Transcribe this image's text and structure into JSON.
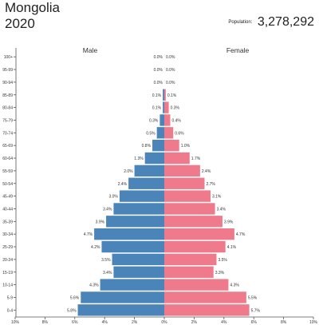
{
  "header": {
    "country": "Mongolia",
    "year": "2020",
    "population_label": "Population:",
    "population_value": "3,278,292"
  },
  "chart_data": {
    "type": "bar",
    "orientation": "horizontal",
    "xlabel": "",
    "ylabel": "",
    "x_ticks": [
      "10%",
      "8%",
      "6%",
      "4%",
      "2%",
      "0%",
      "2%",
      "4%",
      "6%",
      "8%",
      "10%"
    ],
    "xlim": [
      -10,
      10
    ],
    "categories": [
      "100+",
      "95-99",
      "90-94",
      "85-89",
      "80-84",
      "75-79",
      "70-74",
      "65-69",
      "60-64",
      "55-59",
      "50-54",
      "45-49",
      "40-44",
      "35-39",
      "30-34",
      "25-29",
      "20-24",
      "15-19",
      "10-14",
      "5-9",
      "0-4"
    ],
    "series": [
      {
        "name": "Male",
        "color": "#4a84b9",
        "values": [
          0.0,
          0.0,
          0.0,
          0.1,
          0.1,
          0.3,
          0.5,
          0.8,
          1.3,
          2.0,
          2.4,
          3.0,
          3.4,
          3.9,
          4.7,
          4.2,
          3.5,
          3.4,
          4.3,
          5.6,
          5.8
        ],
        "labels": [
          "0.0%",
          "0.0%",
          "0.0%",
          "0.1%",
          "0.1%",
          "0.3%",
          "0.5%",
          "0.8%",
          "1.3%",
          "2.0%",
          "2.4%",
          "3.0%",
          "3.4%",
          "3.9%",
          "4.7%",
          "4.2%",
          "3.5%",
          "3.4%",
          "4.3%",
          "5.6%",
          "5.8%"
        ]
      },
      {
        "name": "Female",
        "color": "#ee7a8c",
        "values": [
          0.0,
          0.0,
          0.0,
          0.1,
          0.3,
          0.4,
          0.6,
          1.0,
          1.7,
          2.4,
          2.7,
          3.1,
          3.4,
          3.9,
          4.7,
          4.1,
          3.5,
          3.3,
          4.3,
          5.5,
          5.7
        ],
        "labels": [
          "0.0%",
          "0.0%",
          "0.0%",
          "0.1%",
          "0.3%",
          "0.4%",
          "0.6%",
          "1.0%",
          "1.7%",
          "2.4%",
          "2.7%",
          "3.1%",
          "3.4%",
          "3.9%",
          "4.7%",
          "4.1%",
          "3.5%",
          "3.3%",
          "4.3%",
          "5.5%",
          "5.7%"
        ]
      }
    ],
    "grid": false
  }
}
